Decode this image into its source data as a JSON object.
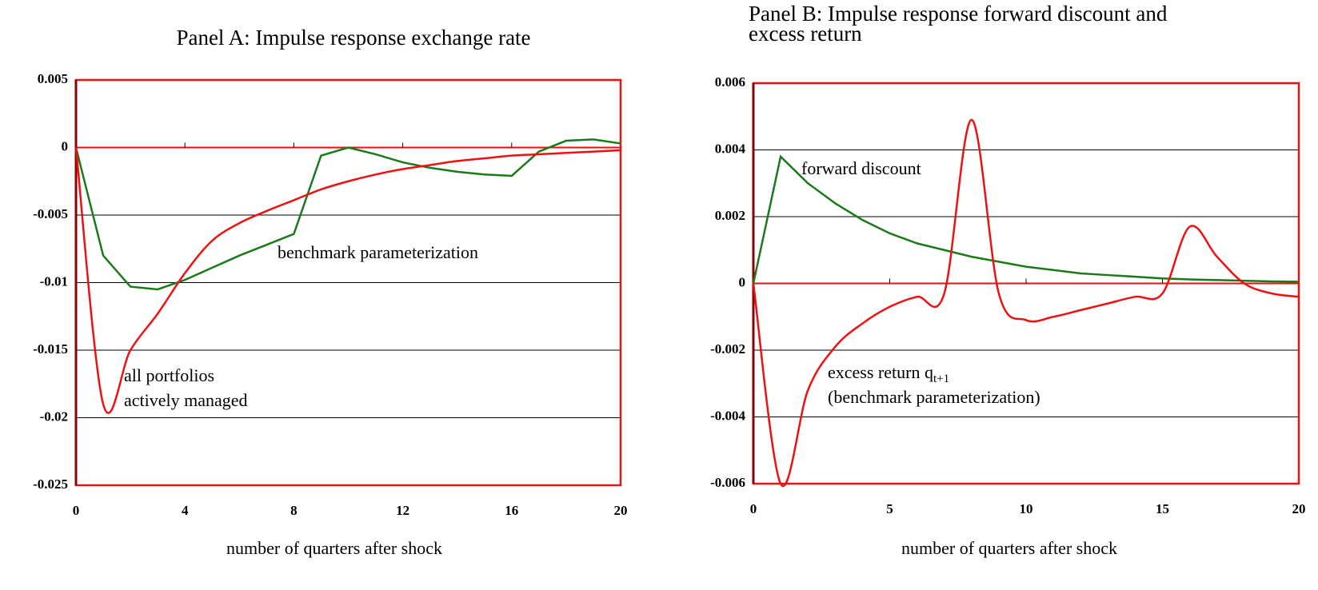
{
  "chart_data": [
    {
      "type": "line",
      "title": [
        "Panel A: Impulse response exchange rate"
      ],
      "x_label": "number of  quarters after shock",
      "x": [
        0,
        1,
        2,
        3,
        4,
        5,
        6,
        7,
        8,
        9,
        10,
        11,
        12,
        13,
        14,
        15,
        16,
        17,
        18,
        19,
        20
      ],
      "xlim": [
        0,
        20
      ],
      "xticks": [
        0,
        4,
        8,
        12,
        16,
        20
      ],
      "ylim": [
        -0.025,
        0.005
      ],
      "yticks": [
        0.005,
        0,
        -0.005,
        -0.01,
        -0.015,
        -0.02,
        -0.025
      ],
      "grid": true,
      "series": [
        {
          "label": [
            {
              "text": "benchmark parameterization"
            }
          ],
          "color": "#1a7a1a",
          "smooth": false,
          "values": [
            0,
            -0.008,
            -0.0103,
            -0.0105,
            -0.0098,
            -0.0089,
            -0.008,
            -0.0072,
            -0.0064,
            -0.0006,
            0,
            -0.0005,
            -0.0011,
            -0.0015,
            -0.0018,
            -0.002,
            -0.0021,
            -0.0003,
            0.0005,
            0.0006,
            0.0003
          ]
        },
        {
          "label": [
            {
              "text": "all portfolios"
            },
            {
              "text": "actively managed"
            }
          ],
          "color": "#ee1111",
          "smooth": true,
          "values": [
            0,
            -0.019,
            -0.015,
            -0.0123,
            -0.0093,
            -0.0069,
            -0.0056,
            -0.0047,
            -0.0039,
            -0.0031,
            -0.0025,
            -0.002,
            -0.0016,
            -0.0013,
            -0.001,
            -0.0008,
            -0.0006,
            -0.0005,
            -0.0004,
            -0.0003,
            -0.0002
          ]
        }
      ]
    },
    {
      "type": "line",
      "title": [
        "Panel B: Impulse response forward discount and",
        "excess return"
      ],
      "x_label": "number of  quarters after shock",
      "x": [
        0,
        1,
        2,
        3,
        4,
        5,
        6,
        7,
        8,
        9,
        10,
        11,
        12,
        13,
        14,
        15,
        16,
        17,
        18,
        19,
        20
      ],
      "xlim": [
        0,
        20
      ],
      "xticks": [
        0,
        5,
        10,
        15,
        20
      ],
      "ylim": [
        -0.006,
        0.006
      ],
      "yticks": [
        0.006,
        0.004,
        0.002,
        0,
        -0.002,
        -0.004,
        -0.006
      ],
      "grid": true,
      "series": [
        {
          "label": [
            {
              "text": "forward discount"
            }
          ],
          "color": "#1a7a1a",
          "smooth": false,
          "values": [
            0,
            0.0038,
            0.003,
            0.0024,
            0.0019,
            0.0015,
            0.0012,
            0.001,
            0.0008,
            0.00065,
            0.0005,
            0.0004,
            0.0003,
            0.00025,
            0.0002,
            0.00015,
            0.00012,
            0.0001,
            8e-05,
            6e-05,
            5e-05
          ]
        },
        {
          "label": [
            {
              "text": "excess return q",
              "sub": "t+1"
            },
            {
              "text": "(benchmark parameterization)"
            }
          ],
          "color": "#ee1111",
          "smooth": true,
          "values": [
            0,
            -0.006,
            -0.0032,
            -0.0019,
            -0.0012,
            -0.0007,
            -0.0004,
            -0.0003,
            0.0049,
            -0.0003,
            -0.0011,
            -0.001,
            -0.0008,
            -0.0006,
            -0.0004,
            -0.0003,
            0.0017,
            0.0008,
            0,
            -0.0003,
            -0.0004
          ]
        }
      ]
    }
  ]
}
